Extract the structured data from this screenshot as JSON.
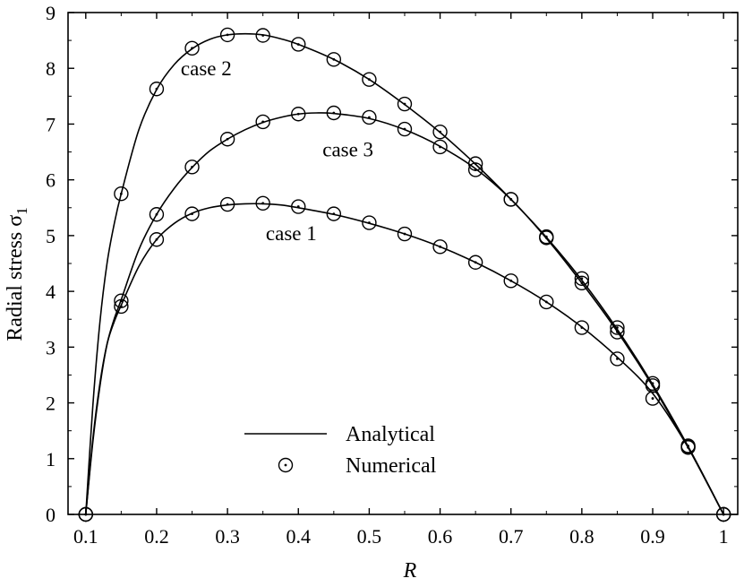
{
  "chart_data": {
    "type": "line",
    "title": "",
    "xlabel": "R",
    "ylabel": "Radial stress σ",
    "ylabel_subscript": "1",
    "xlim": [
      0.075,
      1.02
    ],
    "ylim": [
      0,
      9
    ],
    "xticks": [
      0.1,
      0.2,
      0.3,
      0.4,
      0.5,
      0.6,
      0.7,
      0.8,
      0.9,
      1
    ],
    "xtick_labels": [
      "0.1",
      "0.2",
      "0.3",
      "0.4",
      "0.5",
      "0.6",
      "0.7",
      "0.8",
      "0.9",
      "1"
    ],
    "yticks": [
      0,
      1,
      2,
      3,
      4,
      5,
      6,
      7,
      8,
      9
    ],
    "ytick_labels": [
      "0",
      "1",
      "2",
      "3",
      "4",
      "5",
      "6",
      "7",
      "8",
      "9"
    ],
    "grid": false,
    "legend": {
      "placement": "lower-center",
      "entries": [
        {
          "label": "Analytical",
          "marker": "line"
        },
        {
          "label": "Numerical",
          "marker": "circle-dot"
        }
      ]
    },
    "series": [
      {
        "name": "case 1",
        "label_at": [
          0.39,
          5.05
        ],
        "analytical": {
          "x": [
            0.1,
            0.11,
            0.12,
            0.13,
            0.14,
            0.15,
            0.175,
            0.2,
            0.225,
            0.25,
            0.275,
            0.3,
            0.325,
            0.35,
            0.375,
            0.4,
            0.45,
            0.5,
            0.55,
            0.6,
            0.65,
            0.7,
            0.75,
            0.8,
            0.85,
            0.9,
            0.95,
            1.0
          ],
          "y": [
            0,
            1.35,
            2.35,
            3.05,
            3.45,
            3.75,
            4.45,
            4.93,
            5.22,
            5.4,
            5.5,
            5.55,
            5.57,
            5.57,
            5.55,
            5.5,
            5.38,
            5.22,
            5.03,
            4.8,
            4.52,
            4.19,
            3.81,
            3.36,
            2.82,
            2.17,
            1.2,
            0
          ]
        },
        "numerical": {
          "x": [
            0.1,
            0.15,
            0.2,
            0.25,
            0.3,
            0.35,
            0.4,
            0.45,
            0.5,
            0.55,
            0.6,
            0.65,
            0.7,
            0.75,
            0.8,
            0.85,
            0.9,
            0.95,
            1.0
          ],
          "y": [
            0,
            3.73,
            4.93,
            5.39,
            5.56,
            5.58,
            5.52,
            5.39,
            5.23,
            5.03,
            4.8,
            4.52,
            4.19,
            3.81,
            3.35,
            2.79,
            2.08,
            1.2,
            0
          ]
        }
      },
      {
        "name": "case 2",
        "label_at": [
          0.27,
          8.0
        ],
        "analytical": {
          "x": [
            0.1,
            0.11,
            0.12,
            0.13,
            0.14,
            0.15,
            0.175,
            0.2,
            0.225,
            0.25,
            0.275,
            0.3,
            0.325,
            0.35,
            0.375,
            0.4,
            0.45,
            0.5,
            0.55,
            0.6,
            0.65,
            0.7,
            0.75,
            0.8,
            0.85,
            0.9,
            0.95,
            1.0
          ],
          "y": [
            0,
            1.95,
            3.45,
            4.5,
            5.2,
            5.75,
            6.9,
            7.62,
            8.07,
            8.35,
            8.52,
            8.6,
            8.62,
            8.6,
            8.53,
            8.43,
            8.16,
            7.8,
            7.35,
            6.85,
            6.28,
            5.65,
            4.97,
            4.2,
            3.32,
            2.33,
            1.22,
            0
          ]
        },
        "numerical": {
          "x": [
            0.1,
            0.15,
            0.2,
            0.25,
            0.3,
            0.35,
            0.4,
            0.45,
            0.5,
            0.55,
            0.6,
            0.65,
            0.7,
            0.75,
            0.8,
            0.85,
            0.9,
            0.95,
            1.0
          ],
          "y": [
            0,
            5.75,
            7.63,
            8.36,
            8.6,
            8.59,
            8.43,
            8.16,
            7.8,
            7.36,
            6.86,
            6.29,
            5.65,
            4.98,
            4.23,
            3.35,
            2.35,
            1.23,
            0
          ]
        }
      },
      {
        "name": "case 3",
        "label_at": [
          0.47,
          6.55
        ],
        "analytical": {
          "x": [
            0.1,
            0.11,
            0.12,
            0.13,
            0.14,
            0.15,
            0.175,
            0.2,
            0.225,
            0.25,
            0.275,
            0.3,
            0.325,
            0.35,
            0.375,
            0.4,
            0.425,
            0.45,
            0.5,
            0.55,
            0.6,
            0.65,
            0.7,
            0.75,
            0.8,
            0.85,
            0.9,
            0.95,
            1.0
          ],
          "y": [
            0,
            1.3,
            2.3,
            3.05,
            3.5,
            3.85,
            4.75,
            5.38,
            5.85,
            6.22,
            6.52,
            6.73,
            6.9,
            7.03,
            7.12,
            7.18,
            7.2,
            7.19,
            7.1,
            6.9,
            6.6,
            6.2,
            5.65,
            4.95,
            4.15,
            3.28,
            2.3,
            1.2,
            0
          ]
        },
        "numerical": {
          "x": [
            0.1,
            0.15,
            0.2,
            0.25,
            0.3,
            0.35,
            0.4,
            0.45,
            0.5,
            0.55,
            0.6,
            0.65,
            0.7,
            0.75,
            0.8,
            0.85,
            0.9,
            0.95,
            1.0
          ],
          "y": [
            0,
            3.83,
            5.38,
            6.23,
            6.73,
            7.04,
            7.18,
            7.2,
            7.12,
            6.91,
            6.59,
            6.18,
            5.65,
            4.96,
            4.15,
            3.27,
            2.31,
            1.21,
            0
          ]
        }
      }
    ]
  }
}
